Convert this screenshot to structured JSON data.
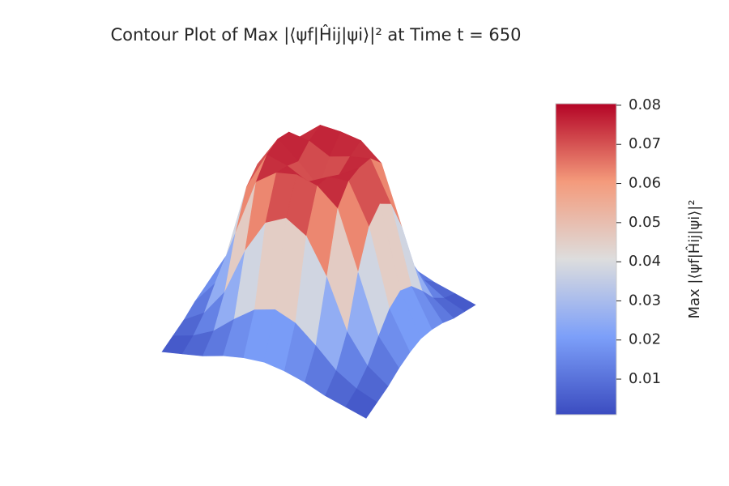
{
  "chart_data": {
    "type": "surface",
    "title": "Contour Plot of Max |⟨ψf|Ĥij|ψi⟩|² at Time t = 650",
    "colorbar_label": "Max |⟨ψf|Ĥij|ψi⟩|²",
    "colormap": "coolwarm",
    "clim": [
      0.0009,
      0.0804
    ],
    "cticks": [
      0.01,
      0.02,
      0.03,
      0.04,
      0.05,
      0.06,
      0.07,
      0.08
    ],
    "z": [
      [
        0.002,
        0.004,
        0.006,
        0.009,
        0.011,
        0.012,
        0.011,
        0.009,
        0.006,
        0.004,
        0.002
      ],
      [
        0.004,
        0.007,
        0.012,
        0.02,
        0.027,
        0.03,
        0.027,
        0.02,
        0.012,
        0.007,
        0.004
      ],
      [
        0.006,
        0.012,
        0.024,
        0.045,
        0.06,
        0.065,
        0.06,
        0.045,
        0.024,
        0.012,
        0.006
      ],
      [
        0.009,
        0.02,
        0.045,
        0.07,
        0.077,
        0.079,
        0.077,
        0.07,
        0.045,
        0.02,
        0.009
      ],
      [
        0.011,
        0.027,
        0.06,
        0.077,
        0.075,
        0.072,
        0.076,
        0.078,
        0.06,
        0.027,
        0.011
      ],
      [
        0.012,
        0.03,
        0.065,
        0.079,
        0.071,
        0.064,
        0.072,
        0.078,
        0.065,
        0.03,
        0.012
      ],
      [
        0.011,
        0.027,
        0.06,
        0.077,
        0.076,
        0.072,
        0.075,
        0.077,
        0.06,
        0.027,
        0.011
      ],
      [
        0.009,
        0.02,
        0.045,
        0.07,
        0.077,
        0.078,
        0.077,
        0.07,
        0.045,
        0.02,
        0.009
      ],
      [
        0.006,
        0.012,
        0.024,
        0.045,
        0.06,
        0.065,
        0.06,
        0.045,
        0.024,
        0.012,
        0.006
      ],
      [
        0.004,
        0.007,
        0.012,
        0.02,
        0.027,
        0.03,
        0.027,
        0.02,
        0.012,
        0.007,
        0.004
      ],
      [
        0.002,
        0.004,
        0.006,
        0.009,
        0.011,
        0.012,
        0.011,
        0.009,
        0.006,
        0.004,
        0.002
      ]
    ]
  }
}
